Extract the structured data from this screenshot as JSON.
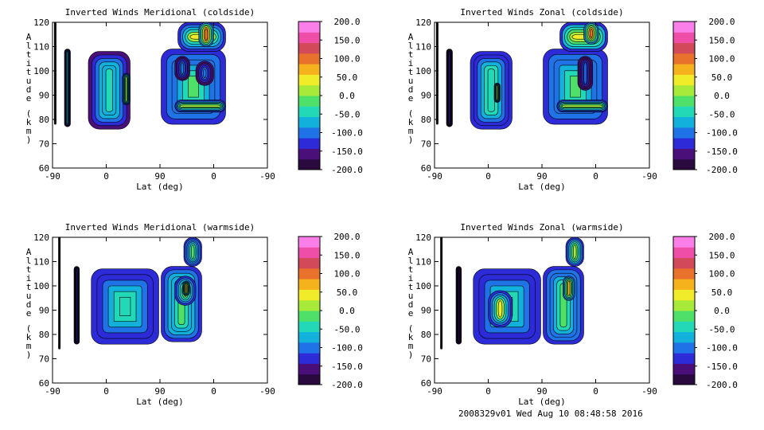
{
  "footer": "2008329v01 Wed Aug 10 08:48:58 2016",
  "chart_data": [
    {
      "type": "contour",
      "title": "Inverted Winds Meridional (coldside)",
      "xlabel": "Lat (deg)",
      "ylabel": "Altitude (km)",
      "x_ticks": [
        "-90",
        "0",
        "90",
        "0",
        "-90"
      ],
      "y_ticks": [
        "60",
        "70",
        "80",
        "90",
        "100",
        "110",
        "120"
      ],
      "ylim": [
        60,
        120
      ],
      "colorbar": {
        "ticks": [
          "200.0",
          "150.0",
          "100.0",
          "50.0",
          "0.0",
          "-50.0",
          "-100.0",
          "-150.0",
          "-200.0"
        ],
        "range": [
          -200,
          200
        ]
      },
      "regions": [
        {
          "x": [
            -87,
            -84
          ],
          "y": [
            78,
            120
          ],
          "value": -180
        },
        {
          "x": [
            -70,
            -60
          ],
          "y": [
            77,
            109
          ],
          "value": -60
        },
        {
          "x": [
            -30,
            40
          ],
          "y": [
            76,
            108
          ],
          "value": -40
        },
        {
          "x": [
            27,
            40
          ],
          "y": [
            86,
            99
          ],
          "value": 10
        },
        {
          "x": [
            92,
            200
          ],
          "y": [
            78,
            109
          ],
          "value": -20
        },
        {
          "x": [
            120,
            200
          ],
          "y": [
            108,
            120
          ],
          "value": 30
        },
        {
          "x": [
            155,
            180
          ],
          "y": [
            110,
            120
          ],
          "value": 110
        },
        {
          "x": [
            115,
            140
          ],
          "y": [
            96,
            106
          ],
          "value": -100
        },
        {
          "x": [
            150,
            180
          ],
          "y": [
            94,
            104
          ],
          "value": -90
        },
        {
          "x": [
            115,
            200
          ],
          "y": [
            83,
            88
          ],
          "value": 20
        }
      ]
    },
    {
      "type": "contour",
      "title": "Inverted Winds Zonal (coldside)",
      "xlabel": "Lat (deg)",
      "ylabel": "Altitude (km)",
      "x_ticks": [
        "-90",
        "0",
        "90",
        "0",
        "-90"
      ],
      "y_ticks": [
        "60",
        "70",
        "80",
        "90",
        "100",
        "110",
        "120"
      ],
      "ylim": [
        60,
        120
      ],
      "colorbar": {
        "ticks": [
          "200.0",
          "150.0",
          "100.0",
          "50.0",
          "0.0",
          "-50.0",
          "-100.0",
          "-150.0",
          "-200.0"
        ],
        "range": [
          -200,
          200
        ]
      },
      "regions": [
        {
          "x": [
            -87,
            -84
          ],
          "y": [
            78,
            120
          ],
          "value": -180
        },
        {
          "x": [
            -70,
            -60
          ],
          "y": [
            77,
            109
          ],
          "value": -140
        },
        {
          "x": [
            -30,
            40
          ],
          "y": [
            76,
            108
          ],
          "value": -30
        },
        {
          "x": [
            10,
            20
          ],
          "y": [
            87,
            95
          ],
          "value": 10
        },
        {
          "x": [
            92,
            200
          ],
          "y": [
            78,
            109
          ],
          "value": -20
        },
        {
          "x": [
            120,
            200
          ],
          "y": [
            108,
            120
          ],
          "value": 40
        },
        {
          "x": [
            160,
            185
          ],
          "y": [
            111,
            120
          ],
          "value": 100
        },
        {
          "x": [
            150,
            175
          ],
          "y": [
            92,
            106
          ],
          "value": -110
        },
        {
          "x": [
            115,
            200
          ],
          "y": [
            83,
            88
          ],
          "value": 10
        }
      ]
    },
    {
      "type": "contour",
      "title": "Inverted Winds Meridional (warmside)",
      "xlabel": "Lat (deg)",
      "ylabel": "Altitude (km)",
      "x_ticks": [
        "-90",
        "0",
        "90",
        "0",
        "-90"
      ],
      "y_ticks": [
        "60",
        "70",
        "80",
        "90",
        "100",
        "110",
        "120"
      ],
      "ylim": [
        60,
        120
      ],
      "colorbar": {
        "ticks": [
          "200.0",
          "150.0",
          "100.0",
          "50.0",
          "0.0",
          "-50.0",
          "-100.0",
          "-150.0",
          "-200.0"
        ],
        "range": [
          -200,
          200
        ]
      },
      "regions": [
        {
          "x": [
            -80,
            -77
          ],
          "y": [
            74,
            120
          ],
          "value": -200
        },
        {
          "x": [
            -54,
            -45
          ],
          "y": [
            76,
            108
          ],
          "value": -120
        },
        {
          "x": [
            -25,
            88
          ],
          "y": [
            76,
            107
          ],
          "value": -30
        },
        {
          "x": [
            92,
            160
          ],
          "y": [
            77,
            108
          ],
          "value": -10
        },
        {
          "x": [
            130,
            160
          ],
          "y": [
            108,
            120
          ],
          "value": -20
        },
        {
          "x": [
            115,
            150
          ],
          "y": [
            92,
            104
          ],
          "value": 20
        },
        {
          "x": [
            128,
            140
          ],
          "y": [
            96,
            102
          ],
          "value": 70
        }
      ]
    },
    {
      "type": "contour",
      "title": "Inverted Winds Zonal (warmside)",
      "xlabel": "Lat (deg)",
      "ylabel": "Altitude (km)",
      "x_ticks": [
        "-90",
        "0",
        "90",
        "0",
        "-90"
      ],
      "y_ticks": [
        "60",
        "70",
        "80",
        "90",
        "100",
        "110",
        "120"
      ],
      "ylim": [
        60,
        120
      ],
      "colorbar": {
        "ticks": [
          "200.0",
          "150.0",
          "100.0",
          "50.0",
          "0.0",
          "-50.0",
          "-100.0",
          "-150.0",
          "-200.0"
        ],
        "range": [
          -200,
          200
        ]
      },
      "regions": [
        {
          "x": [
            -80,
            -77
          ],
          "y": [
            74,
            120
          ],
          "value": -200
        },
        {
          "x": [
            -54,
            -45
          ],
          "y": [
            76,
            108
          ],
          "value": -160
        },
        {
          "x": [
            -25,
            88
          ],
          "y": [
            76,
            107
          ],
          "value": -30
        },
        {
          "x": [
            0,
            40
          ],
          "y": [
            83,
            98
          ],
          "value": 30
        },
        {
          "x": [
            92,
            160
          ],
          "y": [
            76,
            108
          ],
          "value": -20
        },
        {
          "x": [
            130,
            160
          ],
          "y": [
            108,
            120
          ],
          "value": 10
        },
        {
          "x": [
            125,
            145
          ],
          "y": [
            94,
            104
          ],
          "value": 60
        }
      ]
    }
  ]
}
